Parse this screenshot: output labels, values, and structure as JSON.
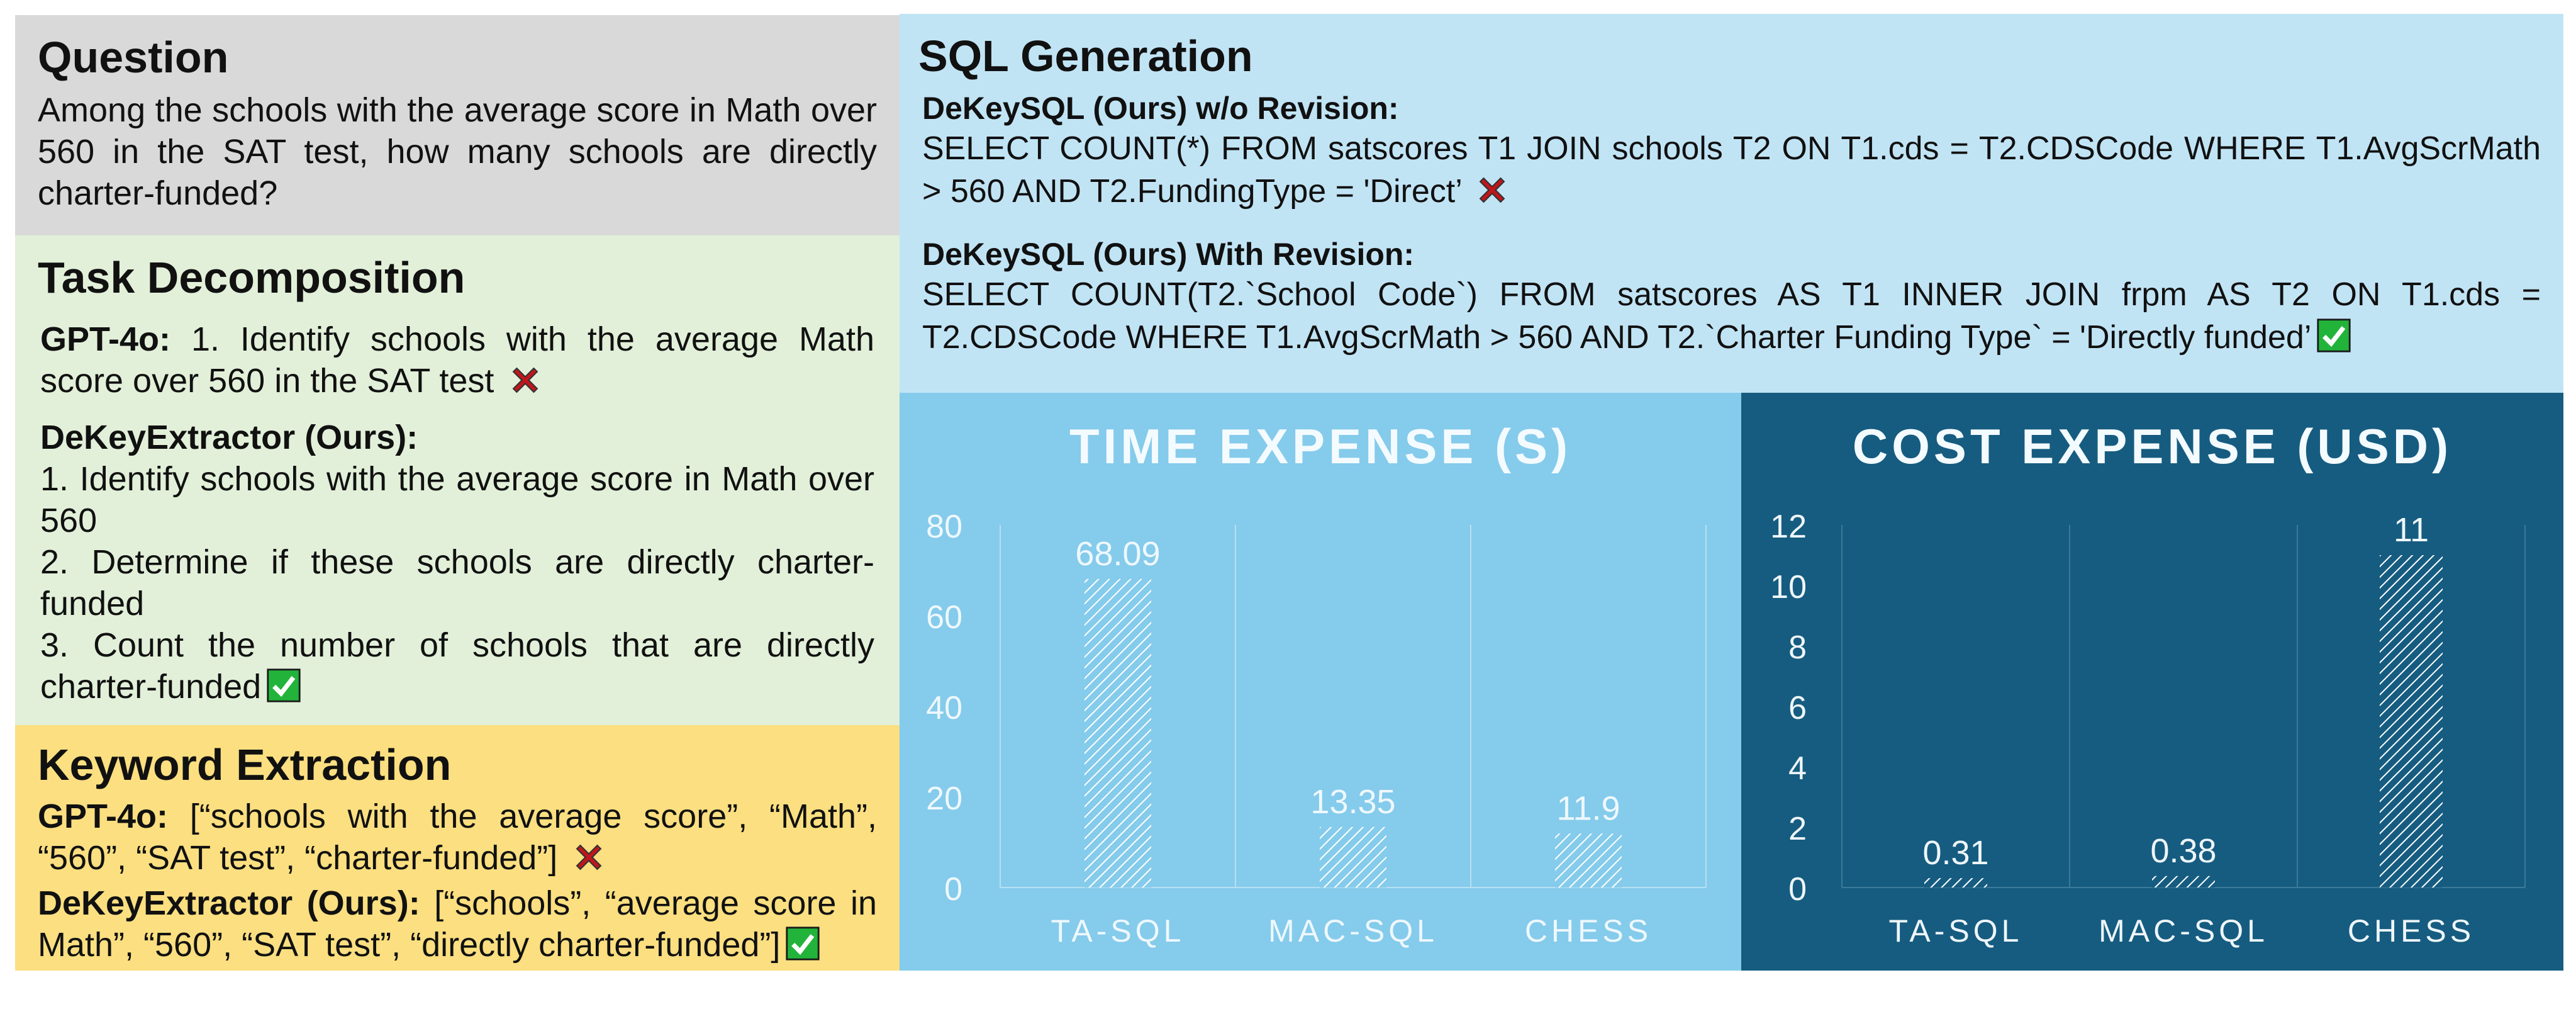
{
  "question": {
    "title": "Question",
    "text": "Among the schools with the average score in Math over 560 in the SAT test, how many schools are directly charter-funded?"
  },
  "task_decomposition": {
    "title": "Task Decomposition",
    "gpt_label": "GPT-4o:",
    "gpt_text": " 1. Identify schools with the average Math score over 560 in the SAT test",
    "gpt_mark": "cross-icon",
    "ours_label": "DeKeyExtractor (Ours):",
    "ours_steps": [
      "1. Identify schools with the average score in Math over 560",
      "2. Determine if these schools are directly charter-funded",
      "3. Count the number of schools that are directly charter-funded"
    ],
    "ours_mark": "check-icon"
  },
  "keyword_extraction": {
    "title": "Keyword Extraction",
    "gpt_label": "GPT-4o:",
    "gpt_text": " [“schools with the average score”, “Math”, “560”, “SAT test”, “charter-funded”]",
    "ours_label": "DeKeyExtractor (Ours):",
    "ours_text": " [“schools”, “average score in Math”, “560”, “SAT test”, “directly charter-funded”]"
  },
  "sql_generation": {
    "title": "SQL Generation",
    "without_label": "DeKeySQL (Ours)  w/o Revision:",
    "without_sql": "SELECT COUNT(*) FROM satscores T1 JOIN schools T2 ON T1.cds = T2.CDSCode WHERE T1.AvgScrMath > 560 AND T2.FundingType = 'Direct’",
    "with_label": "DeKeySQL (Ours)  With Revision:",
    "with_sql": "SELECT COUNT(T2.`School Code`) FROM satscores AS T1 INNER JOIN frpm AS T2 ON T1.cds = T2.CDSCode WHERE T1.AvgScrMath > 560 AND T2.`Charter Funding Type` = 'Directly funded’"
  },
  "colors": {
    "cross": "#c0161d",
    "check": "#22b43a",
    "time_bg": "#85cbeb",
    "cost_bg": "#165c80"
  },
  "chart_data": [
    {
      "type": "bar",
      "title": "TIME EXPENSE (S)",
      "categories": [
        "TA-SQL",
        "MAC-SQL",
        "CHESS"
      ],
      "values": [
        68.09,
        13.35,
        11.9
      ],
      "ylim": [
        0,
        80
      ],
      "yticks": [
        0,
        20,
        40,
        60,
        80
      ],
      "data_labels": [
        "68.09",
        "13.35",
        "11.9"
      ],
      "fill": "hatched"
    },
    {
      "type": "bar",
      "title": "COST EXPENSE (USD)",
      "categories": [
        "TA-SQL",
        "MAC-SQL",
        "CHESS"
      ],
      "values": [
        0.31,
        0.38,
        11
      ],
      "ylim": [
        0,
        12
      ],
      "yticks": [
        0,
        2,
        4,
        6,
        8,
        10,
        12
      ],
      "data_labels": [
        "0.31",
        "0.38",
        "11"
      ],
      "fill": "hatched"
    }
  ]
}
